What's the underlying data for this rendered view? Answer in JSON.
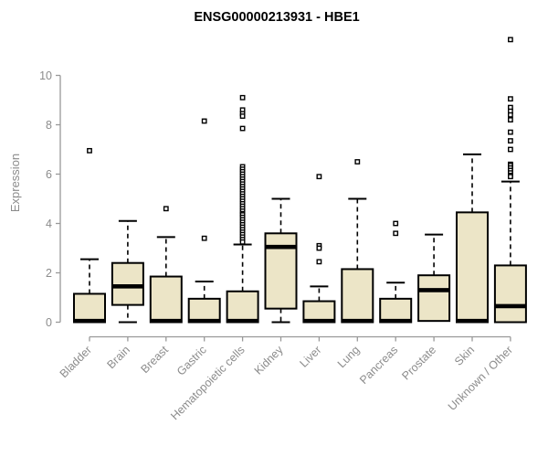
{
  "title": "ENSG00000213931 - HBE1",
  "chart_data": {
    "type": "boxplot",
    "title": "ENSG00000213931 - HBE1",
    "ylabel": "Expression",
    "xlabel": "",
    "y_ticks": [
      0,
      2,
      4,
      6,
      8,
      10
    ],
    "ylim": [
      0,
      11.6
    ],
    "grid": false,
    "legend": "none",
    "box_fill_color": "#ECE5C7",
    "box_line_color": "#000000",
    "axis_color": "#999999",
    "label_color": "#8c8c8c",
    "title_color": "#000000",
    "categories": [
      "Bladder",
      "Brain",
      "Breast",
      "Gastric",
      "Hematopoietic cells",
      "Kidney",
      "Liver",
      "Lung",
      "Pancreas",
      "Prostate",
      "Skin",
      "Unknown / Other"
    ],
    "series": [
      {
        "category": "Bladder",
        "whisker_low": 0,
        "q1": 0,
        "median": 0.05,
        "q3": 1.15,
        "whisker_high": 2.55,
        "outliers": [
          6.95
        ]
      },
      {
        "category": "Brain",
        "whisker_low": 0,
        "q1": 0.7,
        "median": 1.45,
        "q3": 2.4,
        "whisker_high": 4.1,
        "outliers": []
      },
      {
        "category": "Breast",
        "whisker_low": 0,
        "q1": 0,
        "median": 0.05,
        "q3": 1.85,
        "whisker_high": 3.45,
        "outliers": [
          4.6
        ]
      },
      {
        "category": "Gastric",
        "whisker_low": 0,
        "q1": 0,
        "median": 0.05,
        "q3": 0.95,
        "whisker_high": 1.65,
        "outliers": [
          8.15,
          3.4
        ]
      },
      {
        "category": "Hematopoietic cells",
        "whisker_low": 0,
        "q1": 0,
        "median": 0.05,
        "q3": 1.25,
        "whisker_high": 3.15,
        "outliers": [
          9.1,
          8.6,
          8.45,
          8.35,
          7.85,
          6.3,
          6.2,
          6.1,
          6.0,
          5.9,
          5.8,
          5.7,
          5.6,
          5.5,
          5.4,
          5.3,
          5.2,
          5.1,
          5.0,
          4.9,
          4.8,
          4.7,
          4.6,
          4.5,
          4.4,
          4.35,
          4.25,
          4.15,
          4.05,
          3.95,
          3.85,
          3.75,
          3.65,
          3.55,
          3.45,
          3.35,
          3.25
        ]
      },
      {
        "category": "Kidney",
        "whisker_low": 0,
        "q1": 0.55,
        "median": 3.05,
        "q3": 3.6,
        "whisker_high": 5.0,
        "outliers": []
      },
      {
        "category": "Liver",
        "whisker_low": 0,
        "q1": 0,
        "median": 0.05,
        "q3": 0.85,
        "whisker_high": 1.45,
        "outliers": [
          5.9,
          3.1,
          3.0,
          2.45
        ]
      },
      {
        "category": "Lung",
        "whisker_low": 0,
        "q1": 0,
        "median": 0.05,
        "q3": 2.15,
        "whisker_high": 5.0,
        "outliers": [
          6.5
        ]
      },
      {
        "category": "Pancreas",
        "whisker_low": 0,
        "q1": 0,
        "median": 0.05,
        "q3": 0.95,
        "whisker_high": 1.6,
        "outliers": [
          4.0,
          3.6
        ]
      },
      {
        "category": "Prostate",
        "whisker_low": 0.05,
        "q1": 0.05,
        "median": 1.3,
        "q3": 1.9,
        "whisker_high": 3.55,
        "outliers": []
      },
      {
        "category": "Skin",
        "whisker_low": 0,
        "q1": 0,
        "median": 0.05,
        "q3": 4.45,
        "whisker_high": 6.8,
        "outliers": []
      },
      {
        "category": "Unknown / Other",
        "whisker_low": 0,
        "q1": 0,
        "median": 0.65,
        "q3": 2.3,
        "whisker_high": 5.7,
        "outliers": [
          11.45,
          9.05,
          8.7,
          8.55,
          8.4,
          8.2,
          7.7,
          7.35,
          7.0,
          6.4,
          6.35,
          6.25,
          6.15,
          6.05,
          5.95,
          5.9
        ]
      }
    ]
  }
}
